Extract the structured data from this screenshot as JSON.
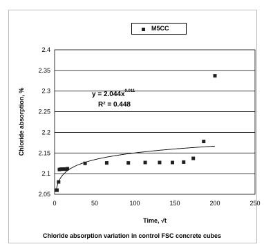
{
  "chart_data": {
    "type": "scatter",
    "title": "",
    "xlabel": "Time, √t",
    "ylabel": "Chloride absorption, %",
    "caption": "Chloride absorption variation in control FSC concrete cubes",
    "xlim": [
      0,
      250
    ],
    "ylim": [
      2.05,
      2.4
    ],
    "x_ticks": [
      "0",
      "50",
      "100",
      "150",
      "200",
      "250"
    ],
    "y_ticks": [
      "2.05",
      "2.1",
      "2.15",
      "2.2",
      "2.25",
      "2.3",
      "2.35",
      "2.4"
    ],
    "grid": "horizontal",
    "legend_position": "top-center",
    "series": [
      {
        "name": "M5CC",
        "marker": "square",
        "x": [
          2,
          3,
          5,
          6,
          8,
          10,
          12,
          14,
          16,
          38,
          65,
          92,
          113,
          131,
          147,
          161,
          173,
          186,
          200
        ],
        "y": [
          2.06,
          2.06,
          2.08,
          2.11,
          2.111,
          2.111,
          2.111,
          2.111,
          2.112,
          2.125,
          2.126,
          2.126,
          2.127,
          2.127,
          2.127,
          2.128,
          2.137,
          2.178,
          2.337
        ]
      }
    ],
    "trendline": {
      "type": "power",
      "a": 2.044,
      "b": 0.011,
      "equation": "y = 2.044x",
      "exponent": "0.011",
      "r2": "R² = 0.448"
    },
    "colors": {
      "marker": "#1f1f1f",
      "trendline": "#000000",
      "grid": "#000000"
    }
  }
}
